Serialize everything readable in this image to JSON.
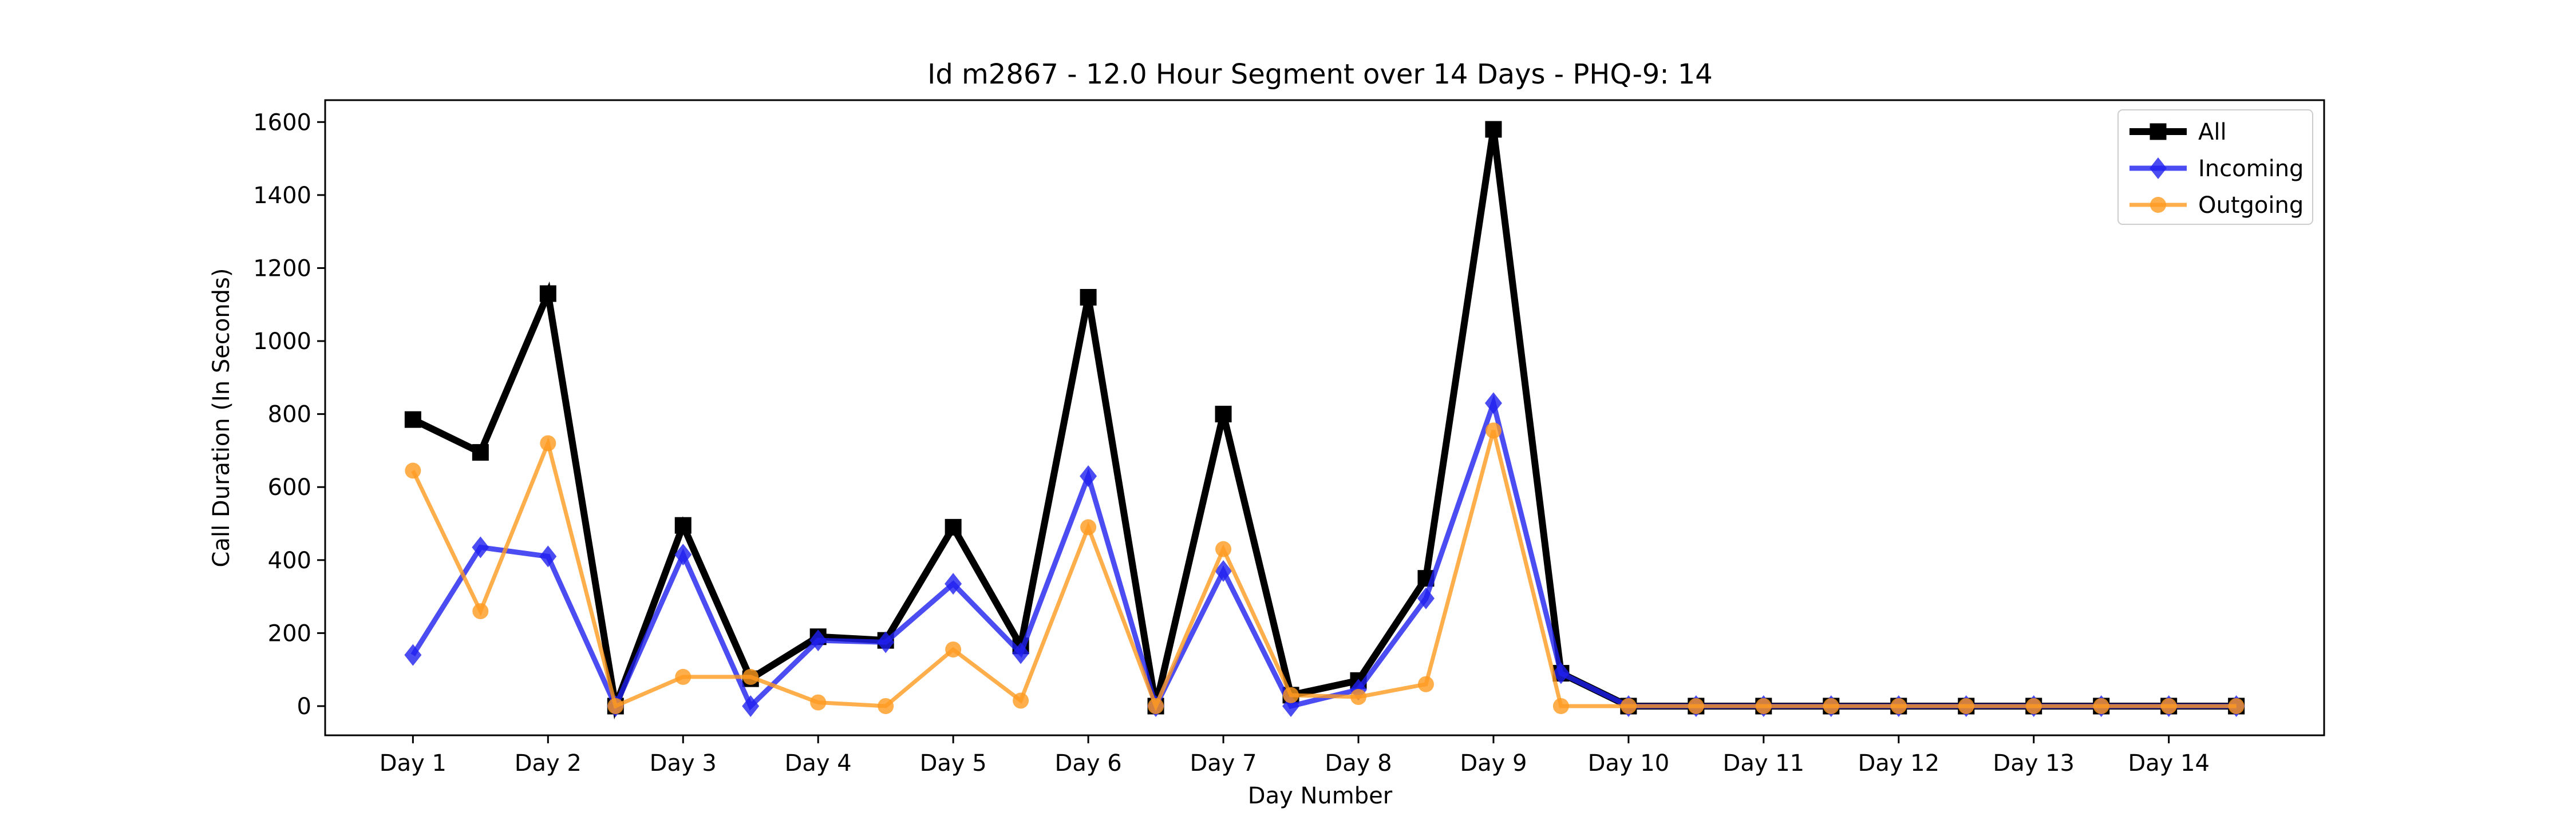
{
  "chart_data": {
    "type": "line",
    "title": "Id m2867 - 12.0 Hour Segment over 14 Days - PHQ-9: 14",
    "xlabel": "Day Number",
    "ylabel": "Call Duration (In Seconds)",
    "ylim": [
      -80,
      1660
    ],
    "yticks": [
      0,
      200,
      400,
      600,
      800,
      1000,
      1200,
      1400,
      1600
    ],
    "xticks": [
      {
        "x": 1,
        "label": "Day 1"
      },
      {
        "x": 3,
        "label": "Day 2"
      },
      {
        "x": 5,
        "label": "Day 3"
      },
      {
        "x": 7,
        "label": "Day 4"
      },
      {
        "x": 9,
        "label": "Day 5"
      },
      {
        "x": 11,
        "label": "Day 6"
      },
      {
        "x": 13,
        "label": "Day 7"
      },
      {
        "x": 15,
        "label": "Day 8"
      },
      {
        "x": 17,
        "label": "Day 9"
      },
      {
        "x": 19,
        "label": "Day 10"
      },
      {
        "x": 21,
        "label": "Day 11"
      },
      {
        "x": 23,
        "label": "Day 12"
      },
      {
        "x": 25,
        "label": "Day 13"
      },
      {
        "x": 27,
        "label": "Day 14"
      }
    ],
    "xlim": [
      -0.3,
      29.3
    ],
    "x": [
      1,
      2,
      3,
      4,
      5,
      6,
      7,
      8,
      9,
      10,
      11,
      12,
      13,
      14,
      15,
      16,
      17,
      18,
      19,
      20,
      21,
      22,
      23,
      24,
      25,
      26,
      27,
      28
    ],
    "series": [
      {
        "name": "All",
        "color": "#000000",
        "marker": "square",
        "values": [
          785,
          695,
          1130,
          0,
          495,
          75,
          190,
          180,
          490,
          165,
          1120,
          0,
          800,
          30,
          70,
          350,
          1580,
          90,
          0,
          0,
          0,
          0,
          0,
          0,
          0,
          0,
          0,
          0
        ]
      },
      {
        "name": "Incoming",
        "color": "#1f1ff0",
        "marker": "diamond",
        "values": [
          140,
          435,
          410,
          0,
          415,
          0,
          180,
          175,
          335,
          145,
          630,
          0,
          370,
          0,
          45,
          295,
          830,
          90,
          0,
          0,
          0,
          0,
          0,
          0,
          0,
          0,
          0,
          0
        ]
      },
      {
        "name": "Outgoing",
        "color": "#ff9a1f",
        "marker": "circle",
        "values": [
          645,
          260,
          720,
          0,
          80,
          80,
          10,
          0,
          155,
          15,
          490,
          0,
          430,
          30,
          25,
          60,
          755,
          0,
          0,
          0,
          0,
          0,
          0,
          0,
          0,
          0,
          0,
          0
        ]
      }
    ],
    "legend_position": "top-right",
    "grid": false
  }
}
